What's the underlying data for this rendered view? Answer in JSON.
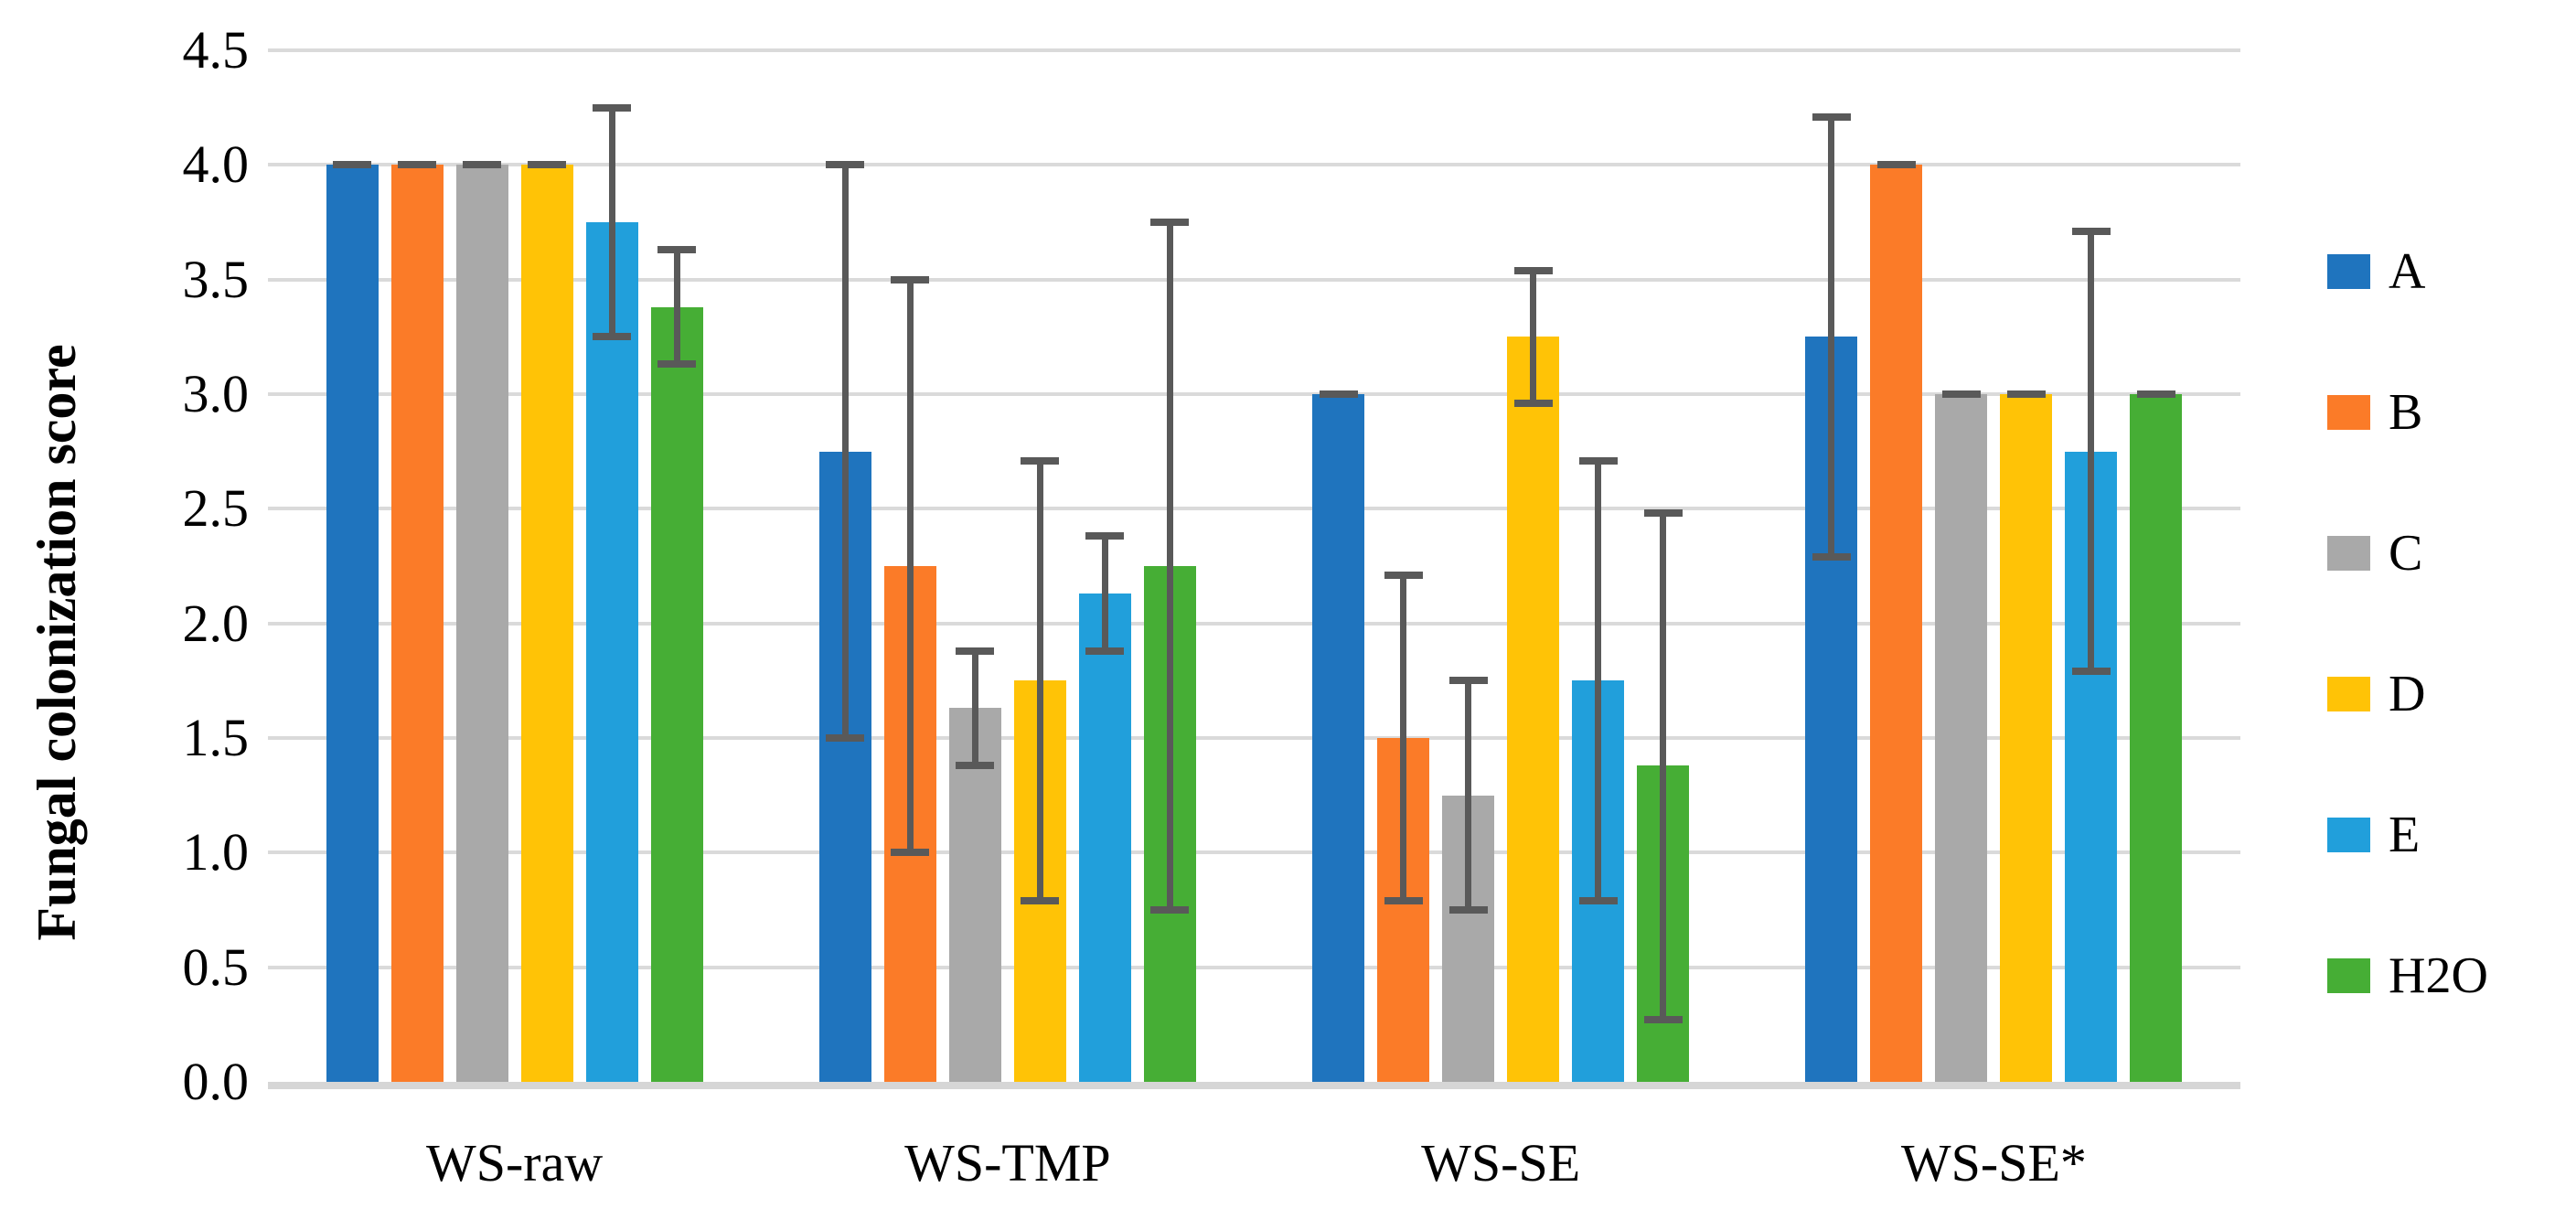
{
  "chart_data": {
    "type": "bar",
    "title": "",
    "ylabel": "Fungal colonization score",
    "xlabel": "",
    "categories": [
      "WS-raw",
      "WS-TMP",
      "WS-SE",
      "WS-SE*"
    ],
    "series": [
      {
        "name": "A",
        "color": "#1f74be",
        "values": [
          4.0,
          2.75,
          3.0,
          3.25
        ],
        "error_low": [
          4.0,
          1.5,
          3.0,
          2.29
        ],
        "error_high": [
          4.0,
          4.0,
          3.0,
          4.21
        ]
      },
      {
        "name": "B",
        "color": "#fb7b28",
        "values": [
          4.0,
          2.25,
          1.5,
          4.0
        ],
        "error_low": [
          4.0,
          1.0,
          0.79,
          4.0
        ],
        "error_high": [
          4.0,
          3.5,
          2.21,
          4.0
        ]
      },
      {
        "name": "C",
        "color": "#a9a9a9",
        "values": [
          4.0,
          1.63,
          1.25,
          3.0
        ],
        "error_low": [
          4.0,
          1.38,
          0.75,
          3.0
        ],
        "error_high": [
          4.0,
          1.88,
          1.75,
          3.0
        ]
      },
      {
        "name": "D",
        "color": "#ffc306",
        "values": [
          4.0,
          1.75,
          3.25,
          3.0
        ],
        "error_low": [
          4.0,
          0.79,
          2.96,
          3.0
        ],
        "error_high": [
          4.0,
          2.71,
          3.54,
          3.0
        ]
      },
      {
        "name": "E",
        "color": "#219fdb",
        "values": [
          3.75,
          2.13,
          1.75,
          2.75
        ],
        "error_low": [
          3.25,
          1.88,
          0.79,
          1.79
        ],
        "error_high": [
          4.25,
          2.38,
          2.71,
          3.71
        ]
      },
      {
        "name": "H2O",
        "color": "#46ae35",
        "values": [
          3.38,
          2.25,
          1.38,
          3.0
        ],
        "error_low": [
          3.13,
          0.75,
          0.27,
          3.0
        ],
        "error_high": [
          3.63,
          3.75,
          2.48,
          3.0
        ]
      }
    ],
    "ylim": [
      0,
      4.5
    ],
    "ytick_step": 0.5,
    "yticks": [
      "0.0",
      "0.5",
      "1.0",
      "1.5",
      "2.0",
      "2.5",
      "3.0",
      "3.5",
      "4.0",
      "4.5"
    ],
    "grid": "horizontal",
    "legend_position": "right"
  },
  "styles": {
    "gridline_color": "#dadada",
    "axis_line_color": "#d6d6d6",
    "error_bar_color": "#595959",
    "background": "#ffffff",
    "text_color": "#000000"
  }
}
